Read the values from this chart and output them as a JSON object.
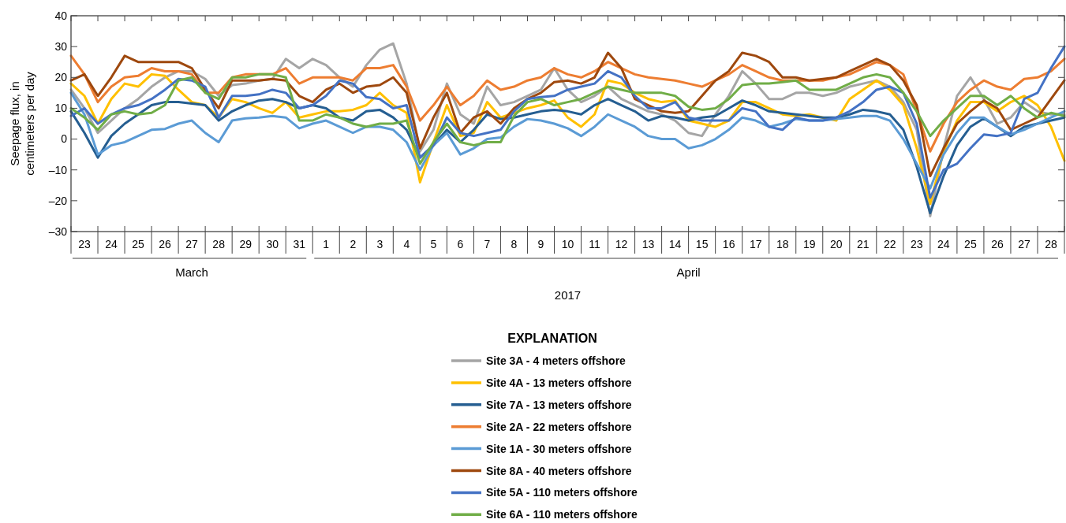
{
  "chart_data": {
    "type": "line",
    "xlabel": "2017",
    "ylabel": "Seepage flux, in centimeters per day",
    "legend_title": "EXPLANATION",
    "legend": "bottom",
    "grid": false,
    "marker": "none",
    "line_style": "solid",
    "xlim": [
      "2017-03-23T00:00",
      "2017-04-29T00:00"
    ],
    "ylim": [
      -30,
      40
    ],
    "yticks": [
      {
        "value": -30,
        "label": "–30"
      },
      {
        "value": -20,
        "label": "–20"
      },
      {
        "value": -10,
        "label": "–10"
      },
      0,
      10,
      20,
      30,
      40
    ],
    "xticks": [
      {
        "value": "2017-03-23T12:00",
        "label": "23"
      },
      {
        "value": "2017-03-24T12:00",
        "label": "24"
      },
      {
        "value": "2017-03-25T12:00",
        "label": "25"
      },
      {
        "value": "2017-03-26T12:00",
        "label": "26"
      },
      {
        "value": "2017-03-27T12:00",
        "label": "27"
      },
      {
        "value": "2017-03-28T12:00",
        "label": "28"
      },
      {
        "value": "2017-03-29T12:00",
        "label": "29"
      },
      {
        "value": "2017-03-30T12:00",
        "label": "30"
      },
      {
        "value": "2017-03-31T12:00",
        "label": "31"
      },
      {
        "value": "2017-04-01T12:00",
        "label": "1"
      },
      {
        "value": "2017-04-02T12:00",
        "label": "2"
      },
      {
        "value": "2017-04-03T12:00",
        "label": "3"
      },
      {
        "value": "2017-04-04T12:00",
        "label": "4"
      },
      {
        "value": "2017-04-05T12:00",
        "label": "5"
      },
      {
        "value": "2017-04-06T12:00",
        "label": "6"
      },
      {
        "value": "2017-04-07T12:00",
        "label": "7"
      },
      {
        "value": "2017-04-08T12:00",
        "label": "8"
      },
      {
        "value": "2017-04-09T12:00",
        "label": "9"
      },
      {
        "value": "2017-04-10T12:00",
        "label": "10"
      },
      {
        "value": "2017-04-11T12:00",
        "label": "11"
      },
      {
        "value": "2017-04-12T12:00",
        "label": "12"
      },
      {
        "value": "2017-04-13T12:00",
        "label": "13"
      },
      {
        "value": "2017-04-14T12:00",
        "label": "14"
      },
      {
        "value": "2017-04-15T12:00",
        "label": "15"
      },
      {
        "value": "2017-04-16T12:00",
        "label": "16"
      },
      {
        "value": "2017-04-17T12:00",
        "label": "17"
      },
      {
        "value": "2017-04-18T12:00",
        "label": "18"
      },
      {
        "value": "2017-04-19T12:00",
        "label": "19"
      },
      {
        "value": "2017-04-20T12:00",
        "label": "20"
      },
      {
        "value": "2017-04-21T12:00",
        "label": "21"
      },
      {
        "value": "2017-04-22T12:00",
        "label": "22"
      },
      {
        "value": "2017-04-23T12:00",
        "label": "23"
      },
      {
        "value": "2017-04-24T12:00",
        "label": "24"
      },
      {
        "value": "2017-04-25T12:00",
        "label": "25"
      },
      {
        "value": "2017-04-26T12:00",
        "label": "26"
      },
      {
        "value": "2017-04-27T12:00",
        "label": "27"
      },
      {
        "value": "2017-04-28T12:00",
        "label": "28"
      }
    ],
    "annotations": [
      "March",
      "April"
    ],
    "x": [
      "2017-03-23T00:00",
      "2017-03-23T12:00",
      "2017-03-24T00:00",
      "2017-03-24T12:00",
      "2017-03-25T00:00",
      "2017-03-25T12:00",
      "2017-03-26T00:00",
      "2017-03-26T12:00",
      "2017-03-27T00:00",
      "2017-03-27T12:00",
      "2017-03-28T00:00",
      "2017-03-28T12:00",
      "2017-03-29T00:00",
      "2017-03-29T12:00",
      "2017-03-30T00:00",
      "2017-03-30T12:00",
      "2017-03-31T00:00",
      "2017-03-31T12:00",
      "2017-04-01T00:00",
      "2017-04-01T12:00",
      "2017-04-02T00:00",
      "2017-04-02T12:00",
      "2017-04-03T00:00",
      "2017-04-03T12:00",
      "2017-04-04T00:00",
      "2017-04-04T12:00",
      "2017-04-05T00:00",
      "2017-04-05T12:00",
      "2017-04-06T00:00",
      "2017-04-06T12:00",
      "2017-04-07T00:00",
      "2017-04-07T12:00",
      "2017-04-08T00:00",
      "2017-04-08T12:00",
      "2017-04-09T00:00",
      "2017-04-09T12:00",
      "2017-04-10T00:00",
      "2017-04-10T12:00",
      "2017-04-11T00:00",
      "2017-04-11T12:00",
      "2017-04-12T00:00",
      "2017-04-12T12:00",
      "2017-04-13T00:00",
      "2017-04-13T12:00",
      "2017-04-14T00:00",
      "2017-04-14T12:00",
      "2017-04-15T00:00",
      "2017-04-15T12:00",
      "2017-04-16T00:00",
      "2017-04-16T12:00",
      "2017-04-17T00:00",
      "2017-04-17T12:00",
      "2017-04-18T00:00",
      "2017-04-18T12:00",
      "2017-04-19T00:00",
      "2017-04-19T12:00",
      "2017-04-20T00:00",
      "2017-04-20T12:00",
      "2017-04-21T00:00",
      "2017-04-21T12:00",
      "2017-04-22T00:00",
      "2017-04-22T12:00",
      "2017-04-23T00:00",
      "2017-04-23T12:00",
      "2017-04-24T00:00",
      "2017-04-24T12:00",
      "2017-04-25T00:00",
      "2017-04-25T12:00",
      "2017-04-26T00:00",
      "2017-04-26T12:00",
      "2017-04-27T00:00",
      "2017-04-27T12:00",
      "2017-04-28T00:00",
      "2017-04-28T12:00",
      "2017-04-29T00:00"
    ],
    "series": [
      {
        "name": "Site 3A - 4 meters offshore",
        "color": "#a5a5a5",
        "values": [
          16,
          10,
          2,
          6,
          10,
          13,
          17,
          20,
          22,
          22,
          19.5,
          14,
          17.5,
          18,
          19,
          19.5,
          26,
          23,
          26,
          24,
          20,
          17,
          24,
          29,
          31,
          18,
          -4,
          3,
          18,
          8,
          5,
          17,
          11,
          12,
          14,
          16,
          23,
          16,
          12,
          14,
          17,
          13,
          11,
          9,
          8,
          6,
          2,
          1,
          8,
          14,
          22,
          18,
          13,
          13,
          15,
          15,
          14,
          15,
          17,
          18,
          19,
          17,
          12,
          3,
          -25,
          -3,
          14,
          20,
          13,
          5,
          7,
          12,
          9,
          8,
          8
        ]
      },
      {
        "name": "Site 4A - 13 meters offshore",
        "color": "#ffc000",
        "values": [
          18,
          14,
          5,
          13,
          18,
          17,
          21,
          20.5,
          16,
          12,
          11,
          7,
          13,
          12,
          10,
          8.5,
          12,
          7,
          8,
          9,
          9,
          9.5,
          11,
          15,
          11,
          8.5,
          -14,
          -1,
          11,
          1,
          2,
          12,
          7,
          8.5,
          10,
          11,
          12.5,
          7,
          4,
          8,
          19,
          18,
          15,
          13,
          12,
          12.5,
          6,
          5,
          4,
          6,
          12,
          12,
          10,
          8,
          7.5,
          8,
          7,
          6,
          13,
          16,
          19,
          16,
          11,
          -3,
          -21,
          -4,
          6,
          12,
          12,
          9,
          12,
          14,
          11,
          4,
          -7
        ]
      },
      {
        "name": "Site 7A - 13 meters offshore",
        "color": "#255e91",
        "values": [
          9,
          2,
          -6,
          1,
          5,
          8,
          11,
          12,
          12,
          11.5,
          11,
          6,
          9,
          11,
          12.5,
          13,
          12,
          10,
          11,
          10,
          7,
          6,
          9,
          9.5,
          7,
          3,
          -6,
          -2,
          3,
          -1,
          3,
          8,
          6.5,
          7,
          8,
          9,
          9.5,
          9,
          8,
          11,
          13,
          11,
          9,
          6,
          7.5,
          7,
          6,
          7,
          7.5,
          10,
          12.5,
          11,
          9,
          8.5,
          8,
          7.5,
          7,
          7,
          8,
          9.5,
          9,
          8,
          3,
          -9,
          -24,
          -12,
          -2,
          4,
          6.7,
          4,
          1,
          4,
          5,
          6,
          7
        ]
      },
      {
        "name": "Site 2A - 22 meters offshore",
        "color": "#ed7d31",
        "values": [
          27,
          21,
          12,
          17,
          20,
          20.5,
          23,
          22,
          22,
          21,
          15,
          15,
          20,
          21,
          21,
          21,
          23,
          18,
          20,
          20,
          20,
          19,
          23,
          23,
          24,
          17,
          6,
          11,
          17,
          11,
          14,
          19,
          16,
          17,
          19,
          20,
          23,
          21,
          20,
          22,
          25,
          23,
          21,
          20,
          19.5,
          19,
          18,
          17,
          19,
          21,
          24,
          22,
          20,
          19,
          19,
          19,
          19,
          20,
          21,
          23,
          25,
          24,
          21,
          9,
          -4,
          5,
          12,
          16,
          19,
          17,
          16,
          19.5,
          20,
          22,
          26
        ]
      },
      {
        "name": "Site 1A - 30 meters offshore",
        "color": "#5b9bd5",
        "values": [
          15,
          8,
          -5,
          -2,
          -1,
          1,
          3,
          3.3,
          5,
          6,
          2,
          -1,
          6,
          6.7,
          7,
          7.5,
          7,
          3.5,
          5,
          6,
          4,
          2,
          4,
          4,
          3,
          -1,
          -10,
          -2,
          2,
          -5,
          -3,
          0,
          0.5,
          4,
          6.5,
          6,
          5,
          3.5,
          1,
          4,
          8,
          6,
          4,
          1,
          0,
          0,
          -3,
          -2,
          0,
          3,
          7,
          6,
          4,
          5,
          6.5,
          6,
          6,
          6.5,
          7,
          7.5,
          7.5,
          6,
          0,
          -8,
          -16,
          -5,
          2,
          7,
          7,
          4,
          1.5,
          3,
          5,
          7,
          9
        ]
      },
      {
        "name": "Site 8A - 40 meters offshore",
        "color": "#9e480e",
        "values": [
          19,
          21,
          14,
          20,
          27,
          25,
          25,
          25,
          25,
          23,
          16,
          10,
          19,
          19,
          19,
          19.5,
          19,
          14,
          12,
          16,
          18,
          15,
          17,
          17.5,
          20,
          15,
          -3,
          7,
          15,
          2,
          7,
          9,
          5,
          10,
          13,
          15,
          18.5,
          19,
          18,
          20,
          28,
          23,
          13,
          11,
          9,
          8.5,
          9,
          14,
          19,
          22,
          28,
          27,
          25,
          20,
          20,
          19,
          19.5,
          20,
          22,
          24,
          26,
          24,
          19,
          11,
          -12,
          -3,
          5,
          9,
          12.5,
          10,
          3,
          5,
          7,
          13,
          19
        ]
      },
      {
        "name": "Site 5A - 110 meters offshore",
        "color": "#4472c4",
        "values": [
          7.5,
          10,
          5,
          8,
          10,
          11,
          13,
          16,
          19.5,
          19,
          17,
          7,
          14,
          14,
          14.5,
          16,
          15,
          10,
          11,
          14,
          19,
          18,
          13.6,
          13,
          10,
          11,
          -6,
          -2,
          7,
          2,
          1,
          2,
          3,
          9,
          13,
          13.6,
          14,
          16,
          17,
          18,
          22,
          20,
          14,
          10,
          10,
          12,
          7,
          6,
          6,
          6,
          10,
          9,
          4,
          3,
          7,
          6,
          6,
          7,
          9,
          12,
          16,
          17,
          15,
          5,
          -19,
          -10,
          -8,
          -3,
          1.5,
          1,
          2,
          13,
          15,
          23,
          30
        ]
      },
      {
        "name": "Site 6A - 110 meters offshore",
        "color": "#70ad47",
        "values": [
          10,
          7,
          3,
          8,
          9,
          8,
          8.5,
          11,
          19,
          20,
          15,
          13,
          20,
          20,
          21,
          21,
          20,
          6,
          6,
          8,
          7,
          5,
          4,
          5,
          5,
          6,
          -8,
          -1,
          5,
          -1,
          -2,
          -1,
          -1,
          7.5,
          12,
          13,
          11,
          12,
          13,
          15,
          17,
          16,
          15,
          15,
          15,
          14,
          10.5,
          9.5,
          10,
          13,
          17.5,
          18,
          18,
          18.5,
          19,
          16,
          16,
          16,
          18,
          20,
          21,
          20,
          15,
          9,
          1,
          6,
          10,
          14,
          14,
          11,
          14,
          10,
          7,
          8.5,
          7.5
        ]
      }
    ]
  }
}
